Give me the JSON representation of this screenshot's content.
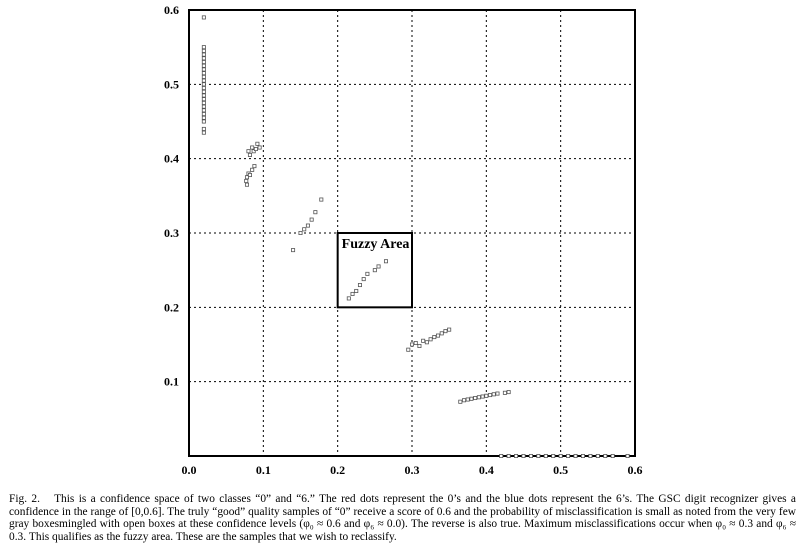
{
  "chart_data": {
    "type": "scatter",
    "xlim": [
      0,
      0.6
    ],
    "ylim": [
      0,
      0.6
    ],
    "xticks": [
      "0.0",
      "0.1",
      "0.2",
      "0.3",
      "0.4",
      "0.5",
      "0.6"
    ],
    "yticks": [
      "0.1",
      "0.2",
      "0.3",
      "0.4",
      "0.5",
      "0.6"
    ],
    "grid": true,
    "annotation": {
      "label": "Fuzzy Area",
      "x": [
        0.2,
        0.3
      ],
      "y": [
        0.2,
        0.3
      ]
    },
    "marker_color": "#555555",
    "points": [
      [
        0.02,
        0.59
      ],
      [
        0.02,
        0.55
      ],
      [
        0.02,
        0.545
      ],
      [
        0.02,
        0.54
      ],
      [
        0.02,
        0.535
      ],
      [
        0.02,
        0.53
      ],
      [
        0.02,
        0.525
      ],
      [
        0.02,
        0.52
      ],
      [
        0.02,
        0.515
      ],
      [
        0.02,
        0.51
      ],
      [
        0.02,
        0.505
      ],
      [
        0.02,
        0.5
      ],
      [
        0.02,
        0.495
      ],
      [
        0.02,
        0.49
      ],
      [
        0.02,
        0.485
      ],
      [
        0.02,
        0.48
      ],
      [
        0.02,
        0.475
      ],
      [
        0.02,
        0.47
      ],
      [
        0.02,
        0.465
      ],
      [
        0.02,
        0.46
      ],
      [
        0.02,
        0.455
      ],
      [
        0.02,
        0.45
      ],
      [
        0.02,
        0.44
      ],
      [
        0.02,
        0.435
      ],
      [
        0.077,
        0.37
      ],
      [
        0.078,
        0.375
      ],
      [
        0.08,
        0.38
      ],
      [
        0.082,
        0.378
      ],
      [
        0.085,
        0.385
      ],
      [
        0.088,
        0.39
      ],
      [
        0.08,
        0.41
      ],
      [
        0.082,
        0.405
      ],
      [
        0.085,
        0.415
      ],
      [
        0.087,
        0.41
      ],
      [
        0.09,
        0.413
      ],
      [
        0.092,
        0.42
      ],
      [
        0.095,
        0.415
      ],
      [
        0.078,
        0.365
      ],
      [
        0.14,
        0.277
      ],
      [
        0.15,
        0.3
      ],
      [
        0.155,
        0.305
      ],
      [
        0.16,
        0.31
      ],
      [
        0.165,
        0.318
      ],
      [
        0.17,
        0.328
      ],
      [
        0.178,
        0.345
      ],
      [
        0.215,
        0.212
      ],
      [
        0.22,
        0.218
      ],
      [
        0.225,
        0.222
      ],
      [
        0.23,
        0.23
      ],
      [
        0.235,
        0.238
      ],
      [
        0.24,
        0.245
      ],
      [
        0.25,
        0.25
      ],
      [
        0.255,
        0.255
      ],
      [
        0.265,
        0.262
      ],
      [
        0.295,
        0.143
      ],
      [
        0.3,
        0.15
      ],
      [
        0.305,
        0.152
      ],
      [
        0.31,
        0.148
      ],
      [
        0.315,
        0.155
      ],
      [
        0.32,
        0.153
      ],
      [
        0.325,
        0.157
      ],
      [
        0.33,
        0.16
      ],
      [
        0.335,
        0.162
      ],
      [
        0.34,
        0.165
      ],
      [
        0.345,
        0.168
      ],
      [
        0.35,
        0.17
      ],
      [
        0.365,
        0.073
      ],
      [
        0.37,
        0.075
      ],
      [
        0.375,
        0.076
      ],
      [
        0.38,
        0.077
      ],
      [
        0.385,
        0.078
      ],
      [
        0.39,
        0.079
      ],
      [
        0.395,
        0.08
      ],
      [
        0.4,
        0.081
      ],
      [
        0.405,
        0.082
      ],
      [
        0.41,
        0.083
      ],
      [
        0.415,
        0.084
      ],
      [
        0.425,
        0.085
      ],
      [
        0.43,
        0.086
      ],
      [
        0.42,
        0.0
      ],
      [
        0.43,
        0.0
      ],
      [
        0.44,
        0.0
      ],
      [
        0.45,
        0.0
      ],
      [
        0.46,
        0.0
      ],
      [
        0.47,
        0.0
      ],
      [
        0.48,
        0.0
      ],
      [
        0.49,
        0.0
      ],
      [
        0.5,
        0.0
      ],
      [
        0.51,
        0.0
      ],
      [
        0.52,
        0.0
      ],
      [
        0.53,
        0.0
      ],
      [
        0.54,
        0.0
      ],
      [
        0.55,
        0.0
      ],
      [
        0.56,
        0.0
      ],
      [
        0.57,
        0.0
      ],
      [
        0.59,
        0.0
      ]
    ]
  },
  "caption": {
    "fig_number": "Fig. 2.",
    "text": "This is a confidence space of two classes “0” and “6.” The red dots represent the 0’s and the blue dots represent the 6’s. The GSC digit recognizer gives a confidence in the range of [0,0.6]. The truly “good” quality samples of “0” receive a score of 0.6 and the probability of misclassification is small as noted from the very few gray boxesmingled with open boxes at these confidence levels (φ₀ ≈ 0.6 and φ₆ ≈ 0.0). The reverse is also true. Maximum misclassifications occur when φ₀ ≈ 0.3 and φ₆ ≈ 0.3. This qualifies as the fuzzy area. These are the samples that we wish to reclassify."
  }
}
